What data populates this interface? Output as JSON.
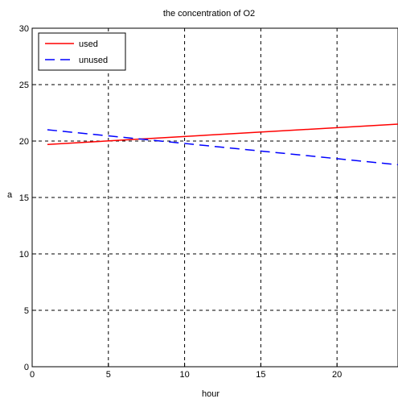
{
  "chart_data": {
    "type": "line",
    "title": "the concentration of O2",
    "xlabel": "hour",
    "ylabel": "a",
    "xlim": [
      0,
      24
    ],
    "ylim": [
      0,
      30
    ],
    "xticks": [
      0,
      5,
      10,
      15,
      20
    ],
    "yticks": [
      0,
      5,
      10,
      15,
      20,
      25,
      30
    ],
    "grid": true,
    "legend_position": "top-left",
    "series": [
      {
        "name": "used",
        "color": "#ff0000",
        "x": [
          1,
          24
        ],
        "y": [
          19.7,
          21.5
        ]
      },
      {
        "name": "unused",
        "color": "#0000ff",
        "dash": "dashed",
        "x": [
          1,
          24
        ],
        "y": [
          21.0,
          17.9
        ]
      }
    ]
  }
}
